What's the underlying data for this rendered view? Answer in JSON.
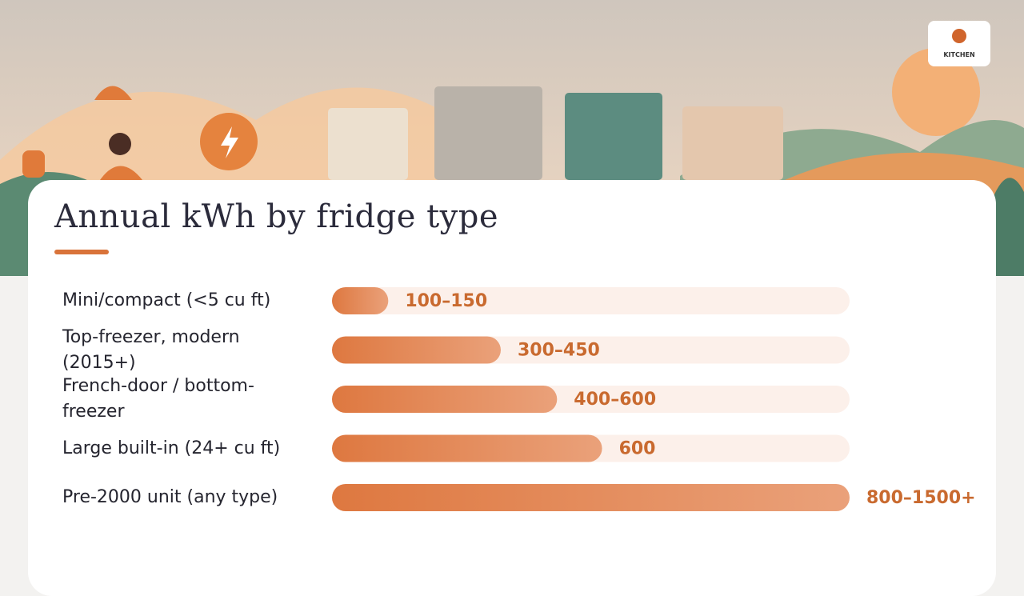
{
  "logo": "KITCHEN",
  "chart_data": {
    "type": "bar",
    "orientation": "horizontal",
    "title": "Annual kWh by fridge type",
    "categories": [
      "Mini/compact (<5 cu ft)",
      "Top-freezer, modern (2015+)",
      "French-door / bottom-freezer",
      "Large built-in (24+ cu ft)",
      "Pre-2000 unit (any type)"
    ],
    "values": [
      125,
      375,
      500,
      600,
      1150
    ],
    "value_labels": [
      "100–150",
      "300–450",
      "400–600",
      "600",
      "800–1500+"
    ],
    "xlim": [
      0,
      1150
    ]
  }
}
